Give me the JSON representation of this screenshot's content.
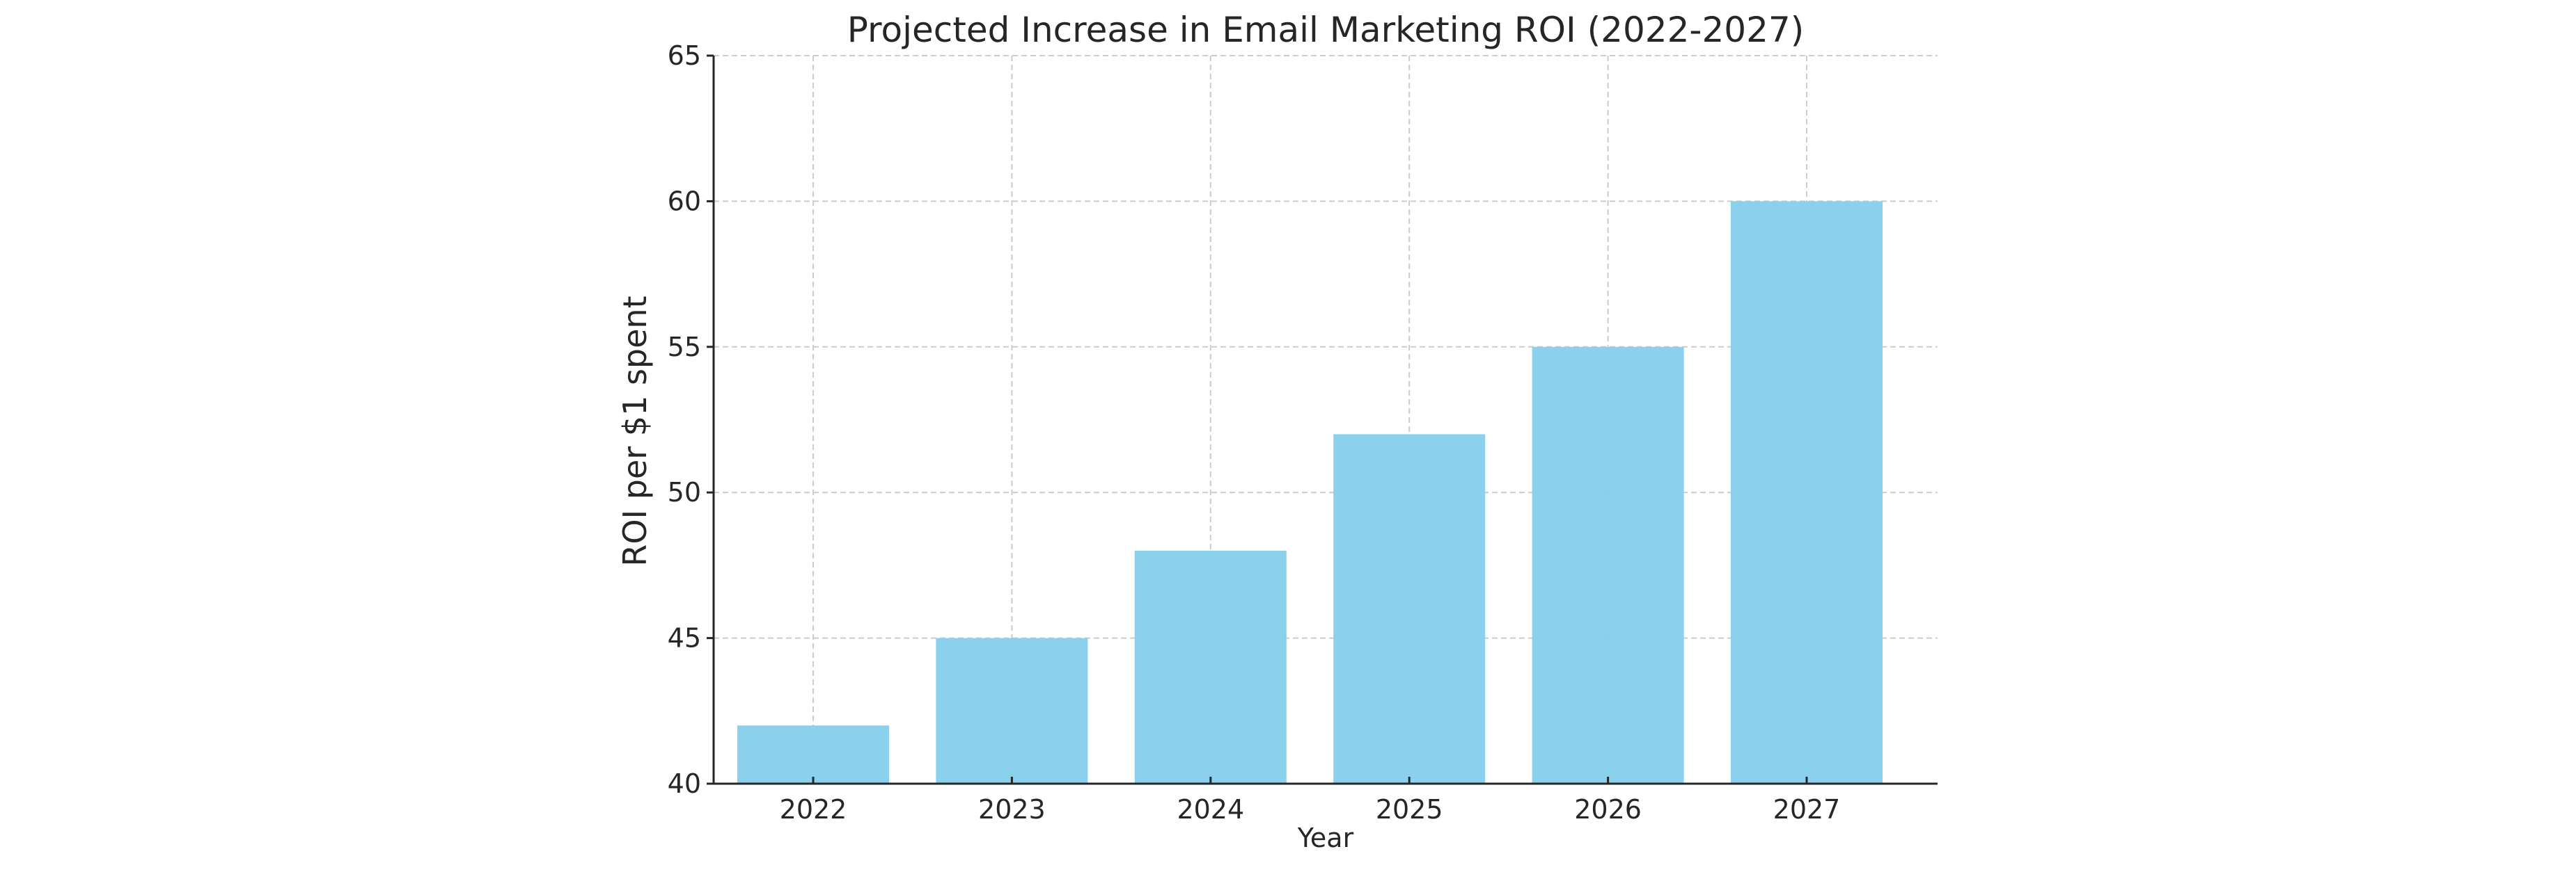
{
  "chart_data": {
    "type": "bar",
    "title": "Projected Increase in Email Marketing ROI (2022-2027)",
    "xlabel": "Year",
    "ylabel": "ROI per $1 spent",
    "categories": [
      "2022",
      "2023",
      "2024",
      "2025",
      "2026",
      "2027"
    ],
    "values": [
      42,
      45,
      48,
      52,
      55,
      60
    ],
    "ylim": [
      40,
      65
    ],
    "yticks": [
      "40",
      "45",
      "50",
      "55",
      "60",
      "65"
    ],
    "grid": true,
    "bar_color": "#87CEEB"
  }
}
